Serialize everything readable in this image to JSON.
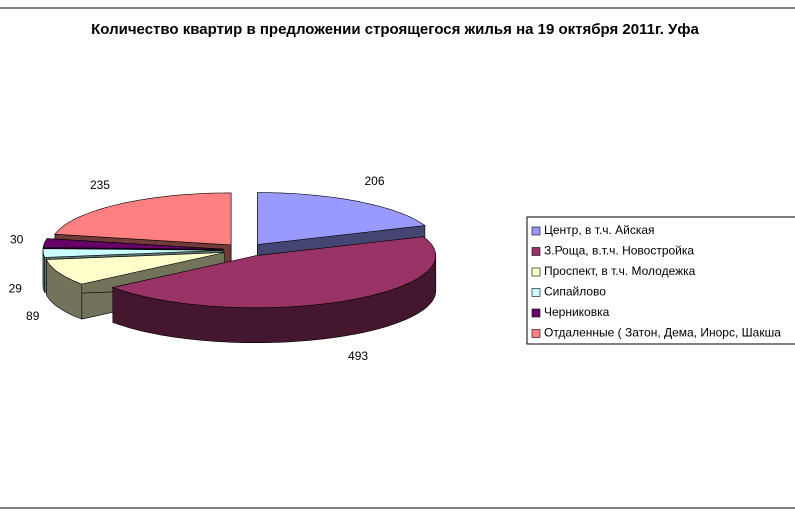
{
  "chart_data": {
    "type": "pie3d",
    "title": "Количество квартир в предложении строящегося жилья на 19 октября 2011г. Уфа",
    "categories": [
      "Центр, в т.ч. Айская",
      "З.Роща, в.т.ч. Новостройка",
      "Проспект, в т.ч. Молодежка",
      "Сипайлово",
      "Черниковка",
      "Отдаленные ( Затон, Дема, Инорс, Шакша"
    ],
    "values": [
      206,
      493,
      89,
      29,
      30,
      235
    ],
    "colors": [
      "#9999ff",
      "#993366",
      "#ffffcc",
      "#ccffff",
      "#660066",
      "#ff8080"
    ],
    "legend": "right"
  }
}
